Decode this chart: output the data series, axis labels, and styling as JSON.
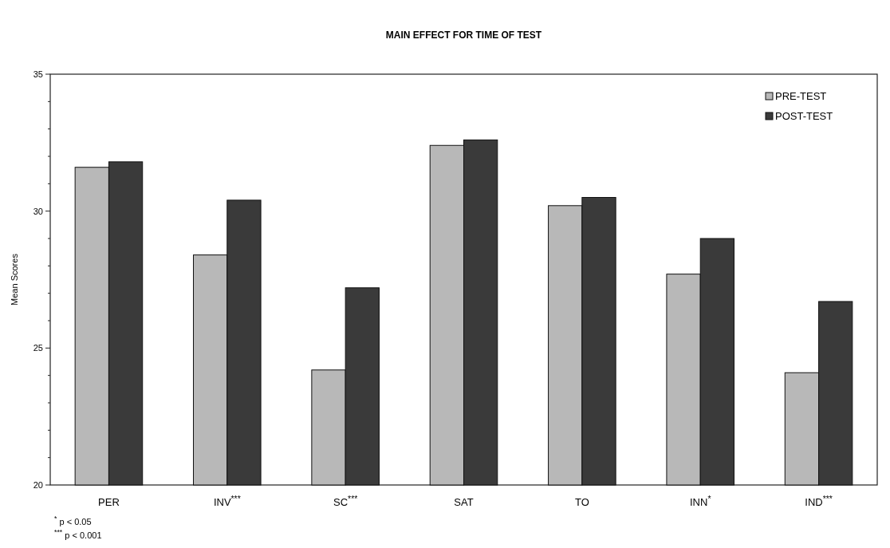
{
  "chart_data": {
    "type": "bar",
    "title": "MAIN EFFECT FOR TIME OF TEST",
    "ylabel": "Mean Scores",
    "categories": [
      "PER",
      "INV$^{***}$",
      "SC$^{***}$",
      "SAT",
      "TO",
      "INN$^{*}$",
      "IND$^{***}$"
    ],
    "series": [
      {
        "name": "PRE-TEST",
        "color": "#b8b8b8",
        "values": [
          31.6,
          28.4,
          24.2,
          32.4,
          30.2,
          27.7,
          24.1
        ]
      },
      {
        "name": "POST-TEST",
        "color": "#3a3a3a",
        "values": [
          31.8,
          30.4,
          27.2,
          32.6,
          30.5,
          29.0,
          26.7
        ]
      }
    ],
    "ylim": [
      20,
      35
    ],
    "yticks": [
      20,
      {
        "value": 21,
        "label": null
      },
      {
        "value": 22,
        "label": null
      },
      {
        "value": 23,
        "label": null
      },
      {
        "value": 24,
        "label": null
      },
      25,
      {
        "value": 26,
        "label": null
      },
      {
        "value": 27,
        "label": null
      },
      {
        "value": 28,
        "label": null
      },
      {
        "value": 29,
        "label": null
      },
      30,
      {
        "value": 31,
        "label": null
      },
      {
        "value": 32,
        "label": null
      },
      {
        "value": 33,
        "label": null
      },
      {
        "value": 34,
        "label": null
      },
      35
    ],
    "legend": "top right",
    "annotations": [
      "$^{*}$ p < 0.05",
      "$^{***}$ p < 0.001"
    ]
  }
}
